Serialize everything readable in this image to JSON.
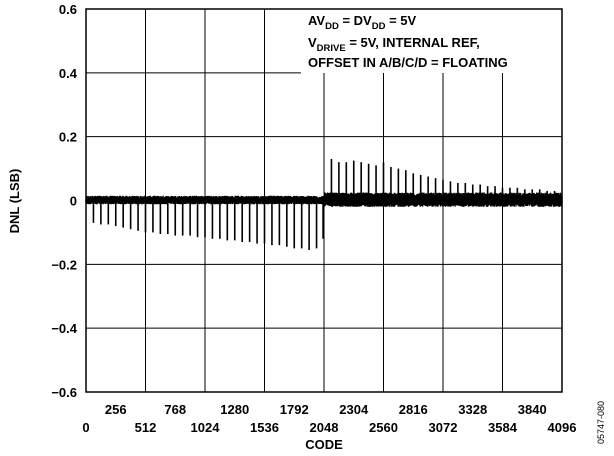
{
  "chart_data": {
    "type": "line",
    "xlabel": "CODE",
    "ylabel": "DNL (LSB)",
    "xlim": [
      0,
      4096
    ],
    "ylim": [
      -0.6,
      0.6
    ],
    "x_ticks_upper": [
      "256",
      "768",
      "1280",
      "1792",
      "2304",
      "2816",
      "3328",
      "3840"
    ],
    "x_ticks_lower": [
      "0",
      "512",
      "1024",
      "1536",
      "2048",
      "2560",
      "3072",
      "3584",
      "4096"
    ],
    "y_ticks": [
      "0.6",
      "0.4",
      "0.2",
      "0",
      "−0.2",
      "−0.4",
      "−0.6"
    ],
    "grid": true,
    "annotation": {
      "line1": {
        "a": "AV",
        "a_sub": "DD",
        "b": " = DV",
        "b_sub": "DD",
        "c": " = 5V"
      },
      "line2": {
        "a": "V",
        "a_sub": "DRIVE",
        "b": " = 5V, INTERNAL REF,"
      },
      "line3": "OFFSET IN A/B/C/D = FLOATING"
    },
    "figure_id": "05747-080",
    "series": [
      {
        "noise_band": {
          "lower_half": [
            -0.012,
            0.015
          ],
          "upper_half": [
            -0.02,
            0.025
          ]
        },
        "negative_spikes": [
          [
            64,
            -0.07
          ],
          [
            128,
            -0.075
          ],
          [
            192,
            -0.075
          ],
          [
            256,
            -0.08
          ],
          [
            320,
            -0.085
          ],
          [
            384,
            -0.09
          ],
          [
            448,
            -0.095
          ],
          [
            512,
            -0.1
          ],
          [
            576,
            -0.1
          ],
          [
            640,
            -0.105
          ],
          [
            704,
            -0.105
          ],
          [
            768,
            -0.11
          ],
          [
            832,
            -0.11
          ],
          [
            896,
            -0.11
          ],
          [
            960,
            -0.115
          ],
          [
            1024,
            -0.115
          ],
          [
            1088,
            -0.12
          ],
          [
            1152,
            -0.12
          ],
          [
            1216,
            -0.125
          ],
          [
            1280,
            -0.125
          ],
          [
            1344,
            -0.13
          ],
          [
            1408,
            -0.13
          ],
          [
            1472,
            -0.135
          ],
          [
            1536,
            -0.135
          ],
          [
            1600,
            -0.14
          ],
          [
            1664,
            -0.14
          ],
          [
            1728,
            -0.145
          ],
          [
            1792,
            -0.15
          ],
          [
            1856,
            -0.15
          ],
          [
            1920,
            -0.155
          ],
          [
            1984,
            -0.15
          ],
          [
            2040,
            -0.12
          ]
        ],
        "positive_spikes": [
          [
            2112,
            0.13
          ],
          [
            2176,
            0.12
          ],
          [
            2240,
            0.12
          ],
          [
            2304,
            0.125
          ],
          [
            2368,
            0.12
          ],
          [
            2432,
            0.115
          ],
          [
            2496,
            0.11
          ],
          [
            2560,
            0.12
          ],
          [
            2624,
            0.105
          ],
          [
            2688,
            0.1
          ],
          [
            2752,
            0.095
          ],
          [
            2816,
            0.085
          ],
          [
            2880,
            0.08
          ],
          [
            2944,
            0.075
          ],
          [
            3008,
            0.07
          ],
          [
            3072,
            0.065
          ],
          [
            3136,
            0.06
          ],
          [
            3200,
            0.055
          ],
          [
            3264,
            0.055
          ],
          [
            3328,
            0.05
          ],
          [
            3392,
            0.05
          ],
          [
            3456,
            0.045
          ],
          [
            3520,
            0.045
          ],
          [
            3584,
            0.04
          ],
          [
            3648,
            0.04
          ],
          [
            3712,
            0.04
          ],
          [
            3776,
            0.035
          ],
          [
            3840,
            0.035
          ],
          [
            3904,
            0.035
          ],
          [
            3968,
            0.03
          ],
          [
            4032,
            0.03
          ]
        ]
      }
    ]
  }
}
